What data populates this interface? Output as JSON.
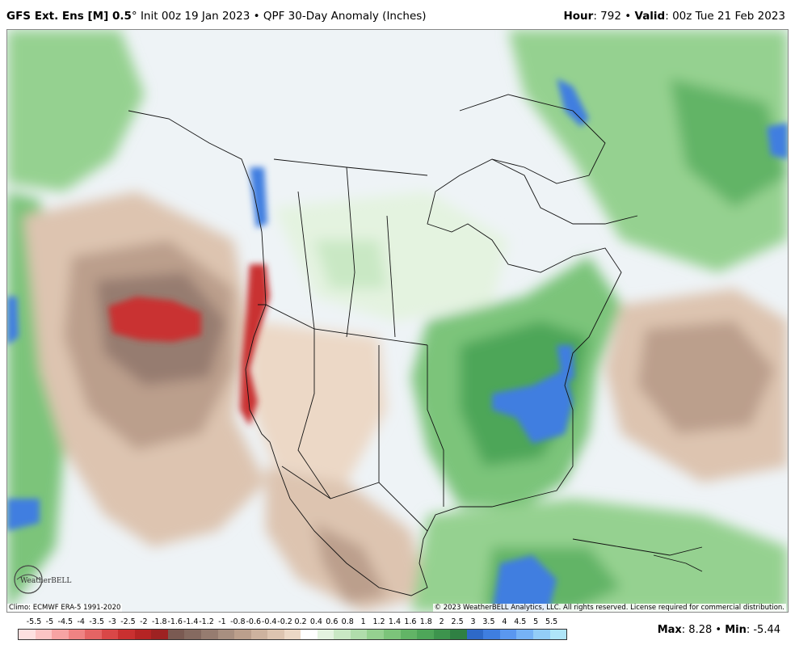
{
  "header": {
    "model": "GFS Ext.  Ens [M] 0.5",
    "degree": "°",
    "init": " Init 00z 19 Jan 2023",
    "bullet": " • ",
    "product": "QPF 30-Day Anomaly (Inches)",
    "hour_label": "Hour",
    "hour_value": ": 792 ",
    "valid_label": "Valid",
    "valid_value": ": 00z Tue 21 Feb 2023"
  },
  "map": {
    "climo": "Climo: ECMWF ERA-5 1991-2020",
    "copyright": "© 2023 WeatherBELL Analytics, LLC. All rights reserved. License required for commercial distribution.",
    "logo_text": "WeatherBELL"
  },
  "legend": {
    "labels": [
      "-5.5",
      "-5",
      "-4.5",
      "-4",
      "-3.5",
      "-3",
      "-2.5",
      "-2",
      "-1.8",
      "-1.6",
      "-1.4",
      "-1.2",
      "-1",
      "-0.8",
      "-0.6",
      "-0.4",
      "-0.2",
      "0.2",
      "0.4",
      "0.6",
      "0.8",
      "1",
      "1.2",
      "1.4",
      "1.6",
      "1.8",
      "2",
      "2.5",
      "3",
      "3.5",
      "4",
      "4.5",
      "5",
      "5.5"
    ],
    "colors": [
      "#fde0e0",
      "#fbc4c4",
      "#f6a3a3",
      "#ef8383",
      "#e56464",
      "#d94747",
      "#c93030",
      "#b52424",
      "#9e2222",
      "#7a5a52",
      "#856a60",
      "#967c70",
      "#a88f80",
      "#bb9f8c",
      "#cdb29e",
      "#ddc4b0",
      "#ecd8c6",
      "#ffffff",
      "#e4f3e0",
      "#c9e8c4",
      "#b0ddab",
      "#95d190",
      "#7cc47a",
      "#62b466",
      "#4ea659",
      "#3d944d",
      "#2f8043",
      "#2e69c8",
      "#3f7ee0",
      "#5a97f0",
      "#76b2f5",
      "#93cdf7",
      "#afe5f8"
    ]
  },
  "stats": {
    "max_label": "Max",
    "max_value": ": 8.28 • ",
    "min_label": "Min",
    "min_value": ": -5.44"
  }
}
